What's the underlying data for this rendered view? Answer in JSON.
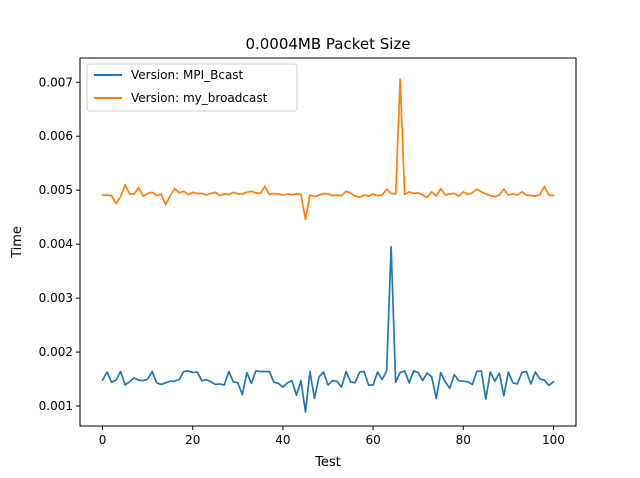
{
  "chart_data": {
    "type": "line",
    "title": "0.0004MB Packet Size",
    "xlabel": "Test",
    "ylabel": "Time",
    "xlim": [
      -5,
      105
    ],
    "ylim": [
      0.00063,
      0.00745
    ],
    "xticks": [
      0,
      20,
      40,
      60,
      80,
      100
    ],
    "xtick_labels": [
      "0",
      "20",
      "40",
      "60",
      "80",
      "100"
    ],
    "yticks": [
      0.001,
      0.002,
      0.003,
      0.004,
      0.005,
      0.006,
      0.007
    ],
    "ytick_labels": [
      "0.001",
      "0.002",
      "0.003",
      "0.004",
      "0.005",
      "0.006",
      "0.007"
    ],
    "grid": false,
    "legend_position": "upper-left",
    "x": [
      0,
      1,
      2,
      3,
      4,
      5,
      6,
      7,
      8,
      9,
      10,
      11,
      12,
      13,
      14,
      15,
      16,
      17,
      18,
      19,
      20,
      21,
      22,
      23,
      24,
      25,
      26,
      27,
      28,
      29,
      30,
      31,
      32,
      33,
      34,
      35,
      36,
      37,
      38,
      39,
      40,
      41,
      42,
      43,
      44,
      45,
      46,
      47,
      48,
      49,
      50,
      51,
      52,
      53,
      54,
      55,
      56,
      57,
      58,
      59,
      60,
      61,
      62,
      63,
      64,
      65,
      66,
      67,
      68,
      69,
      70,
      71,
      72,
      73,
      74,
      75,
      76,
      77,
      78,
      79,
      80,
      81,
      82,
      83,
      84,
      85,
      86,
      87,
      88,
      89,
      90,
      91,
      92,
      93,
      94,
      95,
      96,
      97,
      98,
      99,
      100
    ],
    "series": [
      {
        "name": "Version: MPI_Bcast",
        "color": "#1f77b4",
        "values": [
          0.00148,
          0.00163,
          0.00144,
          0.00148,
          0.00164,
          0.00139,
          0.00145,
          0.00152,
          0.00148,
          0.00147,
          0.0015,
          0.00164,
          0.00143,
          0.0014,
          0.00143,
          0.00146,
          0.00146,
          0.00149,
          0.00164,
          0.00165,
          0.00162,
          0.00163,
          0.00147,
          0.00149,
          0.00145,
          0.0014,
          0.00141,
          0.00139,
          0.00164,
          0.00145,
          0.00143,
          0.00121,
          0.00162,
          0.00142,
          0.00165,
          0.00164,
          0.00164,
          0.00164,
          0.00144,
          0.00142,
          0.00135,
          0.00143,
          0.00147,
          0.0012,
          0.00147,
          0.00089,
          0.00164,
          0.00114,
          0.00154,
          0.00163,
          0.00139,
          0.00147,
          0.00146,
          0.00135,
          0.00164,
          0.00145,
          0.00143,
          0.00163,
          0.00164,
          0.00139,
          0.00139,
          0.00163,
          0.00149,
          0.00165,
          0.00395,
          0.00144,
          0.00162,
          0.00165,
          0.00143,
          0.00165,
          0.00162,
          0.00147,
          0.00161,
          0.00154,
          0.00114,
          0.00162,
          0.00145,
          0.00133,
          0.00158,
          0.00147,
          0.00146,
          0.00145,
          0.0014,
          0.00164,
          0.00165,
          0.00113,
          0.00163,
          0.00146,
          0.00161,
          0.00119,
          0.00163,
          0.00143,
          0.00141,
          0.00162,
          0.00164,
          0.00141,
          0.00163,
          0.0015,
          0.00148,
          0.00138,
          0.00145
        ]
      },
      {
        "name": "Version: my_broadcast",
        "color": "#ff7f0e",
        "values": [
          0.00491,
          0.00491,
          0.0049,
          0.00475,
          0.00488,
          0.0051,
          0.00493,
          0.00493,
          0.00505,
          0.00489,
          0.00494,
          0.00496,
          0.0049,
          0.00493,
          0.00473,
          0.0049,
          0.00503,
          0.00495,
          0.00498,
          0.00492,
          0.00496,
          0.00494,
          0.00494,
          0.00491,
          0.00494,
          0.00496,
          0.0049,
          0.00493,
          0.00492,
          0.00496,
          0.00493,
          0.00493,
          0.00496,
          0.00498,
          0.00495,
          0.00494,
          0.00507,
          0.00492,
          0.00494,
          0.00493,
          0.00491,
          0.00493,
          0.00492,
          0.00493,
          0.00492,
          0.00446,
          0.00491,
          0.00488,
          0.00491,
          0.00494,
          0.00493,
          0.0049,
          0.00491,
          0.0049,
          0.00498,
          0.00495,
          0.00489,
          0.00487,
          0.00491,
          0.00489,
          0.00493,
          0.0049,
          0.00491,
          0.00502,
          0.00494,
          0.00493,
          0.00706,
          0.00492,
          0.00497,
          0.00494,
          0.00495,
          0.00491,
          0.00487,
          0.00497,
          0.00489,
          0.00503,
          0.00491,
          0.00493,
          0.00494,
          0.00489,
          0.00497,
          0.00492,
          0.00495,
          0.00502,
          0.00497,
          0.00493,
          0.0049,
          0.00488,
          0.00491,
          0.00502,
          0.00491,
          0.00493,
          0.00491,
          0.00497,
          0.00491,
          0.0049,
          0.00489,
          0.00492,
          0.00507,
          0.00491,
          0.0049
        ]
      }
    ]
  }
}
